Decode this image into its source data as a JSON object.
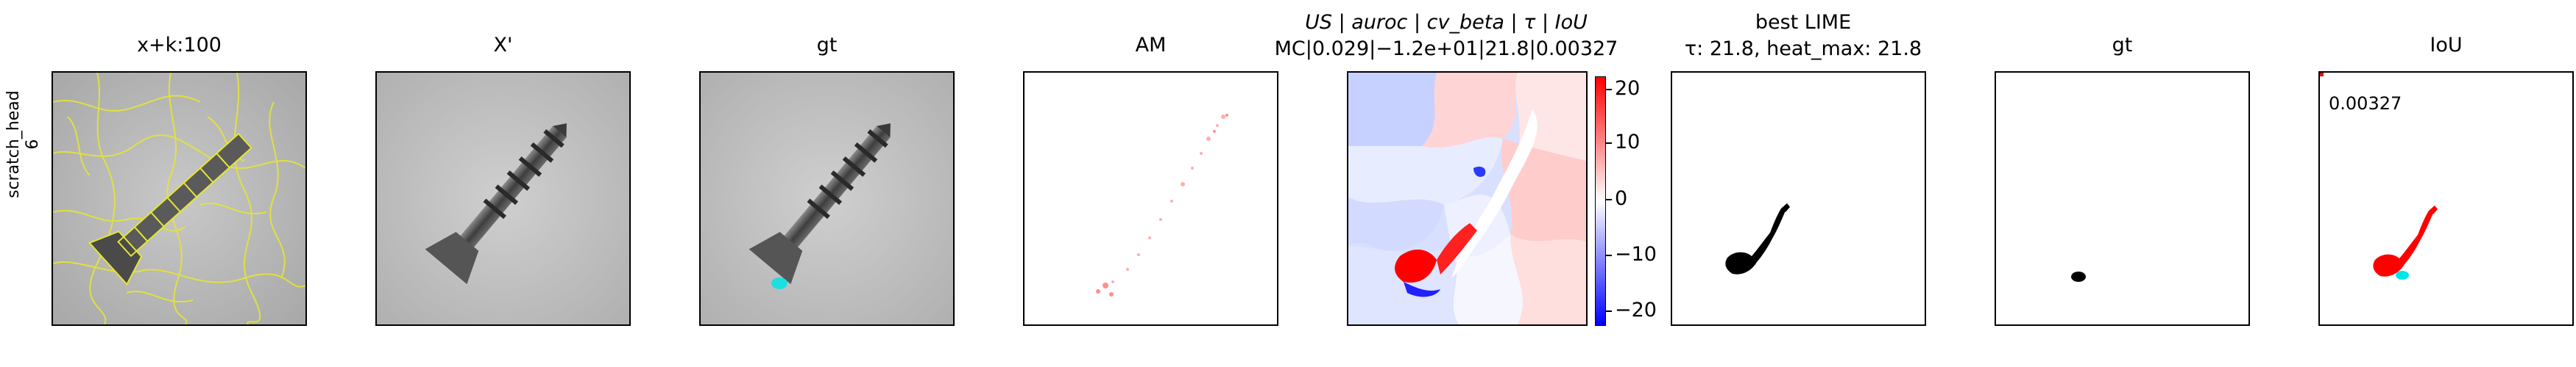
{
  "row_label": {
    "line1": "scratch_head",
    "line2": "6"
  },
  "panels": [
    {
      "title": "x+k:100"
    },
    {
      "title": "X'"
    },
    {
      "title": "gt"
    },
    {
      "title": "AM"
    },
    {
      "title_line1": "US | auroc | cv_beta | τ | IoU",
      "title_line2": "MC|0.029|−1.2e+01|21.8|0.00327"
    },
    {
      "title_line1": "best LIME",
      "title_line2": "τ: 21.8, heat_max: 21.8"
    },
    {
      "title": "gt"
    },
    {
      "title": "IoU",
      "annotation": "0.00327"
    }
  ],
  "colorbar": {
    "ticks": [
      "20",
      "10",
      "0",
      "−10",
      "−20"
    ],
    "colors": {
      "high": "#ff0000",
      "mid": "#ffffff",
      "low": "#0000ff"
    }
  },
  "colors": {
    "boundaries": "#e5e535",
    "anomaly": "#ff0000",
    "gt_highlight": "#00e5e5",
    "mask": "#000000"
  }
}
